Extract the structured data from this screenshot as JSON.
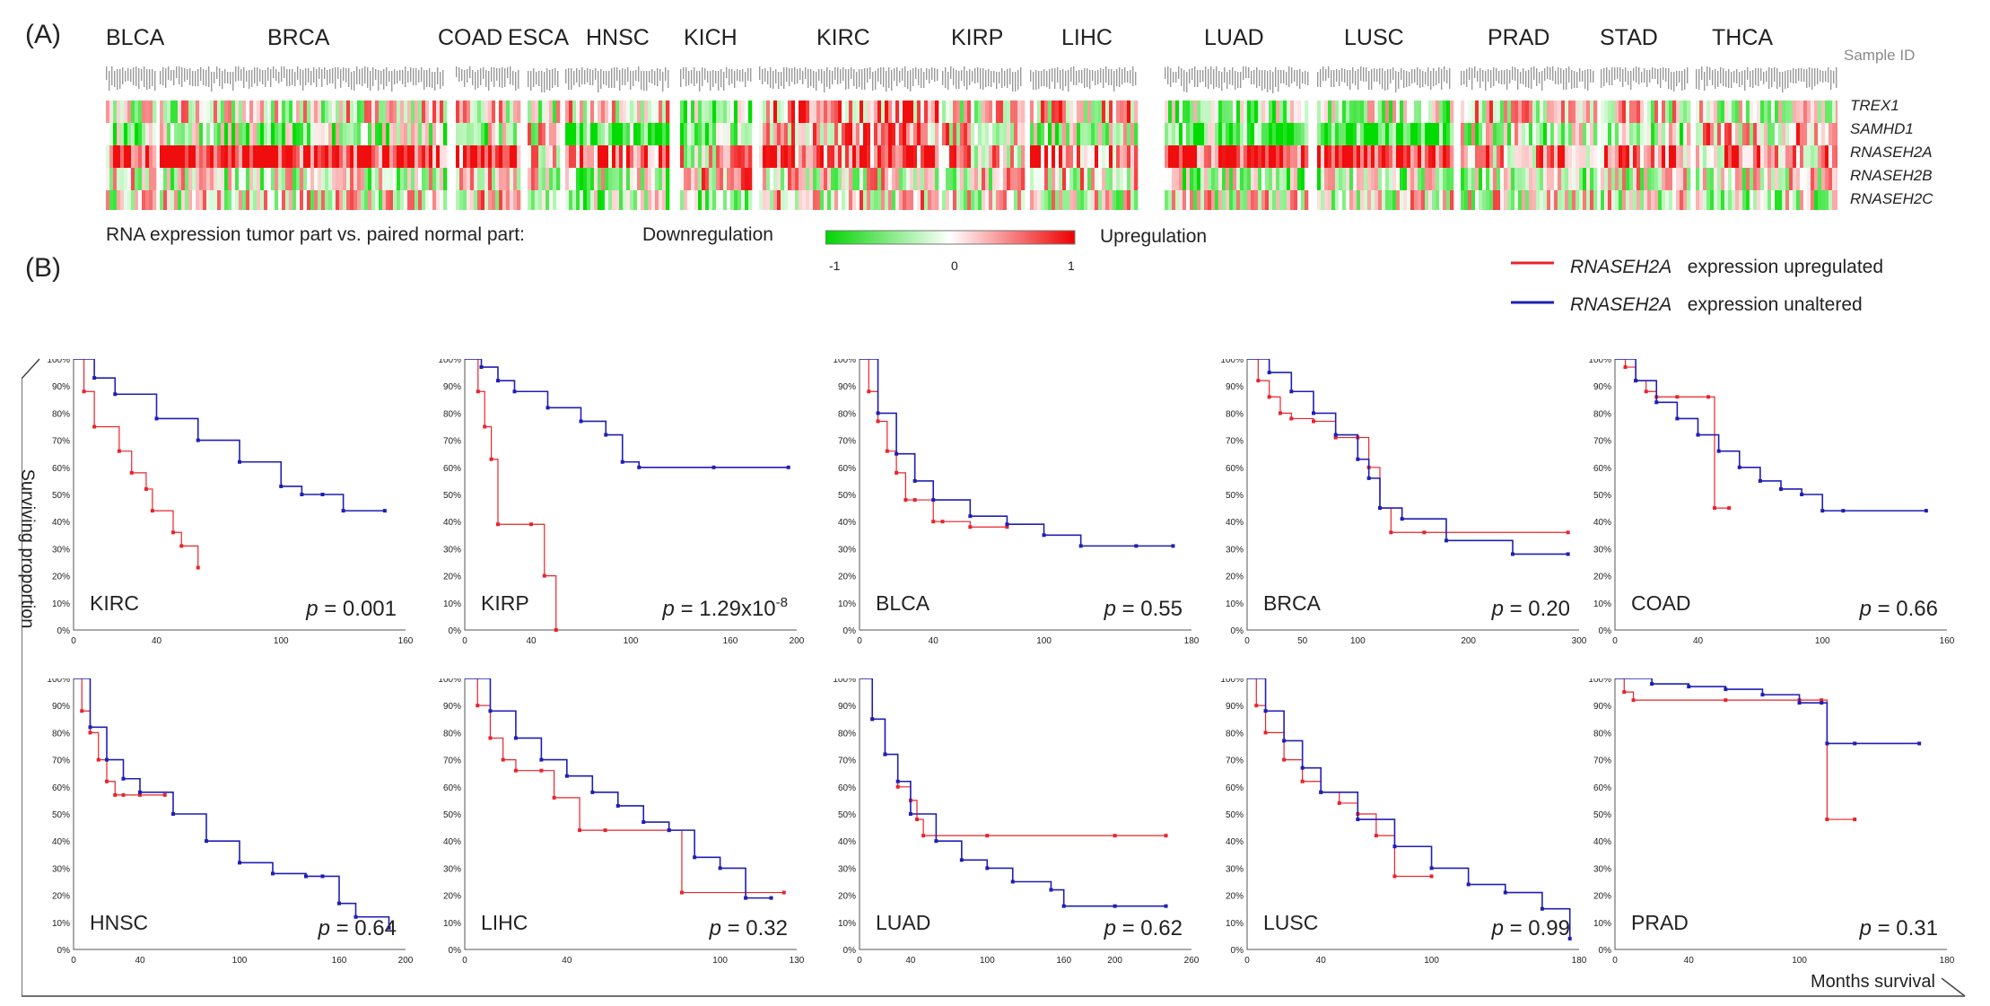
{
  "panel_a_label": "(A)",
  "panel_b_label": "(B)",
  "heatmap": {
    "cancer_types": [
      "BLCA",
      "BRCA",
      "COAD",
      "ESCA",
      "HNSC",
      "KICH",
      "KIRC",
      "KIRP",
      "LIHC",
      "LUAD",
      "LUSC",
      "PRAD",
      "STAD",
      "THCA"
    ],
    "sample_id_label": "Sample ID",
    "genes": [
      "TREX1",
      "SAMHD1",
      "RNASEH2A",
      "RNASEH2B",
      "RNASEH2C"
    ],
    "caption": "RNA expression tumor part vs. paired normal part:",
    "down_label": "Downregulation",
    "up_label": "Upregulation",
    "scale_ticks": [
      "-1",
      "0",
      "1"
    ],
    "colors": {
      "down": "#00e000",
      "mid": "#ffffff",
      "up": "#ff1010"
    }
  },
  "legend": {
    "gene": "RNASEH2A",
    "upregulated_text": "expression upregulated",
    "unaltered_text": "expression unaltered",
    "upregulated_color": "#e8242b",
    "unaltered_color": "#1f1fb4"
  },
  "y_axis_label": "Surviving proportion",
  "x_axis_label": "Months survival",
  "chart_data": [
    {
      "type": "line",
      "cancer": "KIRC",
      "p_prefix": "p",
      "p_value": "= 0.001",
      "xticks": [
        "0",
        "40",
        "100",
        "160"
      ],
      "xlim": [
        0,
        160
      ],
      "yticks": [
        "0%",
        "10%",
        "20%",
        "30%",
        "40%",
        "50%",
        "60%",
        "70%",
        "80%",
        "90%",
        "100%"
      ],
      "series": [
        {
          "name": "expression upregulated",
          "x": [
            0,
            5,
            10,
            22,
            28,
            35,
            38,
            48,
            52,
            60
          ],
          "y": [
            1.0,
            0.88,
            0.75,
            0.66,
            0.58,
            0.52,
            0.44,
            0.36,
            0.31,
            0.23
          ]
        },
        {
          "name": "expression unaltered",
          "x": [
            0,
            10,
            20,
            40,
            60,
            80,
            100,
            110,
            120,
            130,
            150
          ],
          "y": [
            1.0,
            0.93,
            0.87,
            0.78,
            0.7,
            0.62,
            0.53,
            0.5,
            0.5,
            0.44,
            0.44
          ]
        }
      ]
    },
    {
      "type": "line",
      "cancer": "KIRP",
      "p_prefix": "p",
      "p_value": "= 1.29x10",
      "p_exp": "-8",
      "xticks": [
        "0",
        "40",
        "100",
        "160",
        "200"
      ],
      "xlim": [
        0,
        200
      ],
      "yticks": [
        "0%",
        "10%",
        "20%",
        "30%",
        "40%",
        "50%",
        "60%",
        "70%",
        "80%",
        "90%",
        "100%"
      ],
      "series": [
        {
          "name": "expression upregulated",
          "x": [
            0,
            8,
            12,
            16,
            20,
            40,
            48,
            55
          ],
          "y": [
            1.0,
            0.88,
            0.75,
            0.63,
            0.39,
            0.39,
            0.2,
            0.0
          ]
        },
        {
          "name": "expression unaltered",
          "x": [
            0,
            10,
            20,
            30,
            50,
            70,
            85,
            95,
            105,
            150,
            195
          ],
          "y": [
            1.0,
            0.97,
            0.92,
            0.88,
            0.82,
            0.77,
            0.72,
            0.62,
            0.6,
            0.6,
            0.6
          ]
        }
      ]
    },
    {
      "type": "line",
      "cancer": "BLCA",
      "p_prefix": "p",
      "p_value": "= 0.55",
      "xticks": [
        "0",
        "40",
        "100",
        "180"
      ],
      "xlim": [
        0,
        180
      ],
      "yticks": [
        "0%",
        "10%",
        "20%",
        "30%",
        "40%",
        "50%",
        "60%",
        "70%",
        "80%",
        "90%",
        "100%"
      ],
      "series": [
        {
          "name": "expression upregulated",
          "x": [
            0,
            5,
            10,
            15,
            20,
            25,
            30,
            40,
            45,
            60,
            80
          ],
          "y": [
            1.0,
            0.88,
            0.77,
            0.66,
            0.58,
            0.48,
            0.48,
            0.4,
            0.4,
            0.38,
            0.38
          ]
        },
        {
          "name": "expression unaltered",
          "x": [
            0,
            10,
            20,
            30,
            40,
            60,
            80,
            100,
            120,
            150,
            170
          ],
          "y": [
            1.0,
            0.8,
            0.65,
            0.55,
            0.48,
            0.42,
            0.39,
            0.35,
            0.31,
            0.31,
            0.31
          ]
        }
      ]
    },
    {
      "type": "line",
      "cancer": "BRCA",
      "p_prefix": "p",
      "p_value": "= 0.20",
      "xticks": [
        "0",
        "50",
        "100",
        "200",
        "300"
      ],
      "xlim": [
        0,
        300
      ],
      "yticks": [
        "0%",
        "10%",
        "20%",
        "30%",
        "40%",
        "50%",
        "60%",
        "70%",
        "80%",
        "90%",
        "100%"
      ],
      "series": [
        {
          "name": "expression upregulated",
          "x": [
            0,
            10,
            20,
            30,
            40,
            60,
            80,
            100,
            110,
            120,
            130,
            160,
            290
          ],
          "y": [
            1.0,
            0.92,
            0.86,
            0.8,
            0.78,
            0.77,
            0.71,
            0.71,
            0.6,
            0.45,
            0.36,
            0.36,
            0.36
          ]
        },
        {
          "name": "expression unaltered",
          "x": [
            0,
            20,
            40,
            60,
            80,
            100,
            110,
            120,
            140,
            180,
            240,
            290
          ],
          "y": [
            1.0,
            0.95,
            0.88,
            0.8,
            0.72,
            0.63,
            0.56,
            0.45,
            0.41,
            0.33,
            0.28,
            0.28
          ]
        }
      ]
    },
    {
      "type": "line",
      "cancer": "COAD",
      "p_prefix": "p",
      "p_value": "= 0.66",
      "xticks": [
        "0",
        "40",
        "100",
        "160"
      ],
      "xlim": [
        0,
        160
      ],
      "yticks": [
        "0%",
        "10%",
        "20%",
        "30%",
        "40%",
        "50%",
        "60%",
        "70%",
        "80%",
        "90%",
        "100%"
      ],
      "series": [
        {
          "name": "expression upregulated",
          "x": [
            0,
            5,
            10,
            15,
            20,
            30,
            45,
            48,
            55
          ],
          "y": [
            1.0,
            0.97,
            0.92,
            0.88,
            0.86,
            0.86,
            0.86,
            0.45,
            0.45
          ]
        },
        {
          "name": "expression unaltered",
          "x": [
            0,
            10,
            20,
            30,
            40,
            50,
            60,
            70,
            80,
            90,
            100,
            110,
            150
          ],
          "y": [
            1.0,
            0.92,
            0.84,
            0.78,
            0.72,
            0.66,
            0.6,
            0.55,
            0.52,
            0.5,
            0.44,
            0.44,
            0.44
          ]
        }
      ]
    },
    {
      "type": "line",
      "cancer": "HNSC",
      "p_prefix": "p",
      "p_value": "= 0.64",
      "xticks": [
        "0",
        "40",
        "100",
        "160",
        "200"
      ],
      "xlim": [
        0,
        200
      ],
      "yticks": [
        "0%",
        "10%",
        "20%",
        "30%",
        "40%",
        "50%",
        "60%",
        "70%",
        "80%",
        "90%",
        "100%"
      ],
      "series": [
        {
          "name": "expression upregulated",
          "x": [
            0,
            5,
            10,
            15,
            20,
            25,
            30,
            40,
            55
          ],
          "y": [
            1.0,
            0.88,
            0.8,
            0.7,
            0.62,
            0.57,
            0.57,
            0.57,
            0.57
          ]
        },
        {
          "name": "expression unaltered",
          "x": [
            0,
            10,
            20,
            30,
            40,
            60,
            80,
            100,
            120,
            140,
            150,
            160,
            170,
            190
          ],
          "y": [
            1.0,
            0.82,
            0.7,
            0.63,
            0.58,
            0.5,
            0.4,
            0.32,
            0.28,
            0.27,
            0.27,
            0.17,
            0.12,
            0.08
          ]
        }
      ]
    },
    {
      "type": "line",
      "cancer": "LIHC",
      "p_prefix": "p",
      "p_value": "= 0.32",
      "xticks": [
        "0",
        "40",
        "100",
        "130"
      ],
      "xlim": [
        0,
        130
      ],
      "yticks": [
        "0%",
        "10%",
        "20%",
        "30%",
        "40%",
        "50%",
        "60%",
        "70%",
        "80%",
        "90%",
        "100%"
      ],
      "series": [
        {
          "name": "expression upregulated",
          "x": [
            0,
            5,
            10,
            15,
            20,
            30,
            35,
            45,
            55,
            80,
            85,
            125
          ],
          "y": [
            1.0,
            0.9,
            0.78,
            0.7,
            0.66,
            0.66,
            0.56,
            0.44,
            0.44,
            0.44,
            0.21,
            0.21
          ]
        },
        {
          "name": "expression unaltered",
          "x": [
            0,
            10,
            20,
            30,
            40,
            50,
            60,
            70,
            80,
            90,
            100,
            110,
            120
          ],
          "y": [
            1.0,
            0.88,
            0.78,
            0.7,
            0.64,
            0.58,
            0.53,
            0.47,
            0.44,
            0.34,
            0.3,
            0.19,
            0.19
          ]
        }
      ]
    },
    {
      "type": "line",
      "cancer": "LUAD",
      "p_prefix": "p",
      "p_value": "= 0.62",
      "xticks": [
        "0",
        "40",
        "100",
        "160",
        "200",
        "260"
      ],
      "xlim": [
        0,
        260
      ],
      "yticks": [
        "0%",
        "10%",
        "20%",
        "30%",
        "40%",
        "50%",
        "60%",
        "70%",
        "80%",
        "90%",
        "100%"
      ],
      "series": [
        {
          "name": "expression upregulated",
          "x": [
            0,
            10,
            20,
            30,
            40,
            45,
            50,
            100,
            200,
            240
          ],
          "y": [
            1.0,
            0.85,
            0.72,
            0.6,
            0.55,
            0.48,
            0.42,
            0.42,
            0.42,
            0.42
          ]
        },
        {
          "name": "expression unaltered",
          "x": [
            0,
            10,
            20,
            30,
            40,
            60,
            80,
            100,
            120,
            150,
            160,
            200,
            240
          ],
          "y": [
            1.0,
            0.85,
            0.72,
            0.62,
            0.5,
            0.4,
            0.33,
            0.3,
            0.25,
            0.22,
            0.16,
            0.16,
            0.16
          ]
        }
      ]
    },
    {
      "type": "line",
      "cancer": "LUSC",
      "p_prefix": "p",
      "p_value": "= 0.99",
      "xticks": [
        "0",
        "40",
        "100",
        "180"
      ],
      "xlim": [
        0,
        180
      ],
      "yticks": [
        "0%",
        "10%",
        "20%",
        "30%",
        "40%",
        "50%",
        "60%",
        "70%",
        "80%",
        "90%",
        "100%"
      ],
      "series": [
        {
          "name": "expression upregulated",
          "x": [
            0,
            5,
            10,
            20,
            30,
            40,
            50,
            60,
            70,
            80,
            100
          ],
          "y": [
            1.0,
            0.9,
            0.8,
            0.7,
            0.62,
            0.58,
            0.54,
            0.5,
            0.42,
            0.27,
            0.27
          ]
        },
        {
          "name": "expression unaltered",
          "x": [
            0,
            10,
            20,
            30,
            40,
            60,
            80,
            100,
            120,
            140,
            160,
            175
          ],
          "y": [
            1.0,
            0.88,
            0.77,
            0.67,
            0.58,
            0.48,
            0.38,
            0.3,
            0.24,
            0.21,
            0.15,
            0.04
          ]
        }
      ]
    },
    {
      "type": "line",
      "cancer": "PRAD",
      "p_prefix": "p",
      "p_value": "= 0.31",
      "xticks": [
        "0",
        "40",
        "100",
        "180"
      ],
      "xlim": [
        0,
        180
      ],
      "yticks": [
        "0%",
        "10%",
        "20%",
        "30%",
        "40%",
        "50%",
        "60%",
        "70%",
        "80%",
        "90%",
        "100%"
      ],
      "series": [
        {
          "name": "expression upregulated",
          "x": [
            0,
            5,
            10,
            60,
            100,
            112,
            115,
            130
          ],
          "y": [
            1.0,
            0.95,
            0.92,
            0.92,
            0.92,
            0.92,
            0.48,
            0.48
          ]
        },
        {
          "name": "expression unaltered",
          "x": [
            0,
            20,
            40,
            60,
            80,
            100,
            112,
            115,
            130,
            165
          ],
          "y": [
            1.0,
            0.98,
            0.97,
            0.96,
            0.94,
            0.91,
            0.91,
            0.76,
            0.76,
            0.76
          ]
        }
      ]
    }
  ]
}
